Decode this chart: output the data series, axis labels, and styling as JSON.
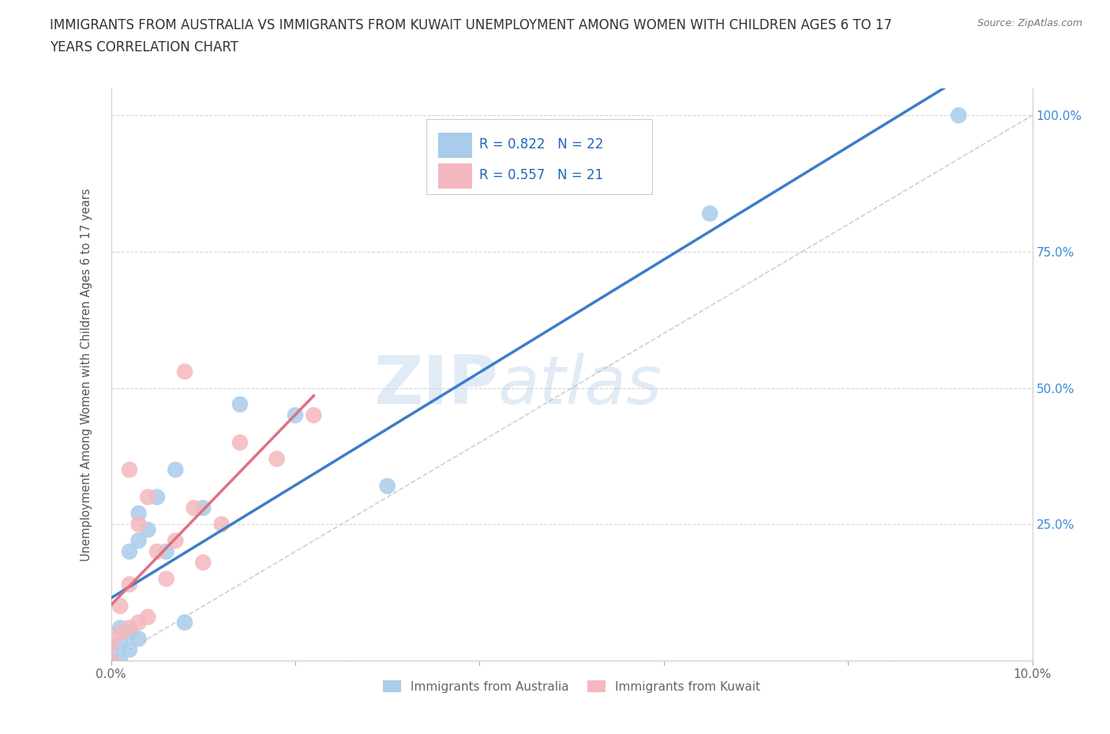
{
  "title_line1": "IMMIGRANTS FROM AUSTRALIA VS IMMIGRANTS FROM KUWAIT UNEMPLOYMENT AMONG WOMEN WITH CHILDREN AGES 6 TO 17",
  "title_line2": "YEARS CORRELATION CHART",
  "source_text": "Source: ZipAtlas.com",
  "ylabel": "Unemployment Among Women with Children Ages 6 to 17 years",
  "xlim": [
    0.0,
    0.1
  ],
  "ylim": [
    0.0,
    1.05
  ],
  "watermark_zip": "ZIP",
  "watermark_atlas": "atlas",
  "legend_R1": "R = 0.822",
  "legend_N1": "N = 22",
  "legend_R2": "R = 0.557",
  "legend_N2": "N = 21",
  "color_australia": "#A8CCEA",
  "color_kuwait": "#F4B8BE",
  "trendline_color_australia": "#3B7EC8",
  "trendline_color_kuwait": "#E07080",
  "grid_color": "#CCCCCC",
  "background_color": "#FFFFFF",
  "legend_label_australia": "Immigrants from Australia",
  "legend_label_kuwait": "Immigrants from Kuwait",
  "aus_x": [
    0.0,
    0.0,
    0.001,
    0.001,
    0.001,
    0.002,
    0.002,
    0.002,
    0.003,
    0.003,
    0.003,
    0.004,
    0.005,
    0.006,
    0.007,
    0.008,
    0.01,
    0.014,
    0.02,
    0.03,
    0.065,
    0.092
  ],
  "aus_y": [
    0.0,
    0.02,
    0.0,
    0.03,
    0.06,
    0.02,
    0.05,
    0.2,
    0.04,
    0.22,
    0.27,
    0.24,
    0.3,
    0.2,
    0.35,
    0.07,
    0.28,
    0.47,
    0.45,
    0.32,
    0.82,
    1.0
  ],
  "kuw_x": [
    0.0,
    0.0,
    0.001,
    0.001,
    0.002,
    0.002,
    0.002,
    0.003,
    0.003,
    0.004,
    0.004,
    0.005,
    0.006,
    0.007,
    0.008,
    0.009,
    0.01,
    0.012,
    0.014,
    0.018,
    0.022
  ],
  "kuw_y": [
    0.0,
    0.03,
    0.05,
    0.1,
    0.06,
    0.14,
    0.35,
    0.07,
    0.25,
    0.08,
    0.3,
    0.2,
    0.15,
    0.22,
    0.53,
    0.28,
    0.18,
    0.25,
    0.4,
    0.37,
    0.45
  ]
}
